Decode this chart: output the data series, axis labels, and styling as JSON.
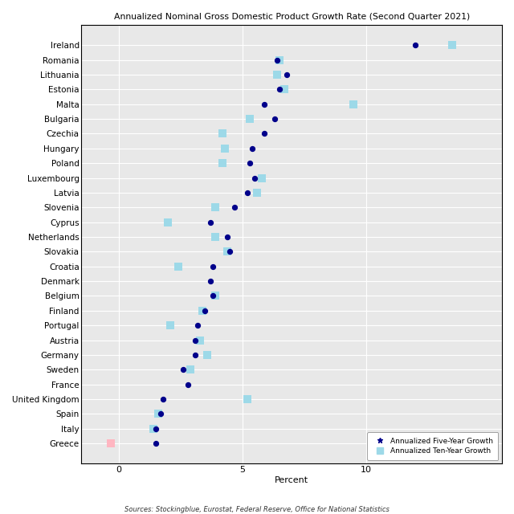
{
  "title": "Annualized Nominal Gross Domestic Product Growth Rate (Second Quarter 2021)",
  "xlabel": "Percent",
  "source": "Sources: Stockingblue, Eurostat, Federal Reserve, Office for National Statistics",
  "countries": [
    "Ireland",
    "Romania",
    "Lithuania",
    "Estonia",
    "Malta",
    "Bulgaria",
    "Czechia",
    "Hungary",
    "Poland",
    "Luxembourg",
    "Latvia",
    "Slovenia",
    "Cyprus",
    "Netherlands",
    "Slovakia",
    "Croatia",
    "Denmark",
    "Belgium",
    "Finland",
    "Portugal",
    "Austria",
    "Germany",
    "Sweden",
    "France",
    "United Kingdom",
    "Spain",
    "Italy",
    "Greece"
  ],
  "five_year": [
    12.0,
    6.4,
    6.8,
    6.5,
    5.9,
    6.3,
    5.9,
    5.4,
    5.3,
    5.5,
    5.2,
    4.7,
    3.7,
    4.4,
    4.5,
    3.8,
    3.7,
    3.8,
    3.5,
    3.2,
    3.1,
    3.1,
    2.6,
    2.8,
    1.8,
    1.7,
    1.5,
    1.5
  ],
  "ten_year": [
    13.5,
    6.5,
    6.4,
    6.7,
    9.5,
    5.3,
    4.2,
    4.3,
    4.2,
    5.8,
    5.6,
    3.9,
    2.0,
    3.9,
    4.4,
    2.4,
    null,
    3.9,
    3.4,
    2.1,
    3.3,
    3.6,
    2.9,
    null,
    5.2,
    1.6,
    1.4,
    -0.3
  ],
  "dot_color": "#00008B",
  "square_color": "#9DD9E8",
  "neg_square_color": "#FFB6C1",
  "bg_color": "#E8E8E8",
  "grid_color": "#FFFFFF",
  "xlim": [
    -1.5,
    15.5
  ],
  "xticks": [
    0,
    5,
    10
  ],
  "legend_dot_marker": "*",
  "legend_square_marker": "s"
}
